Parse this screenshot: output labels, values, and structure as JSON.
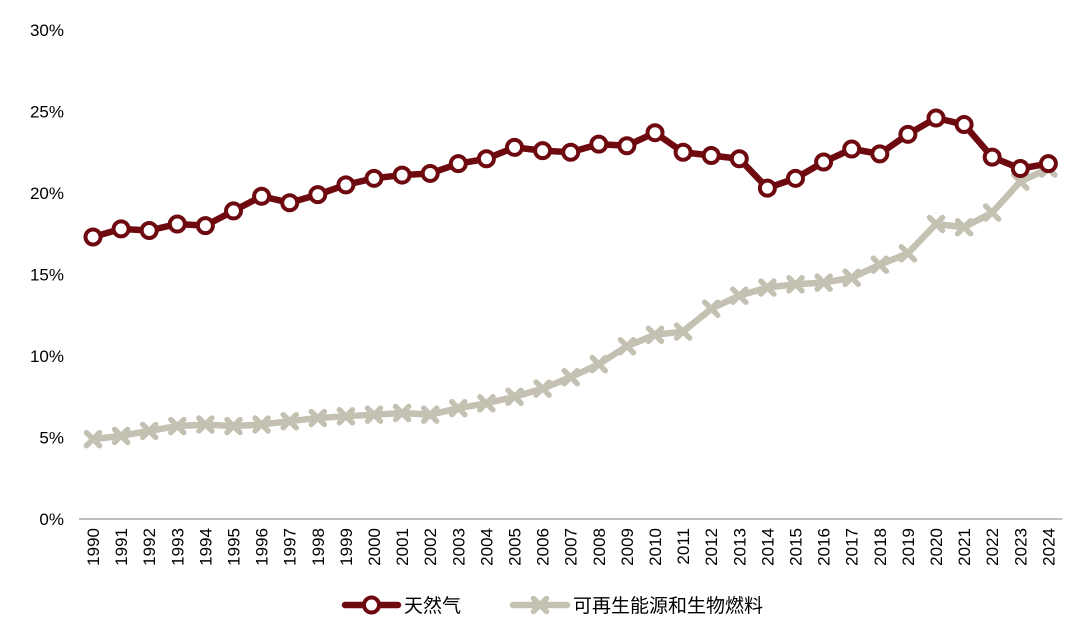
{
  "chart_data": {
    "type": "line",
    "title": "",
    "xlabel": "",
    "ylabel": "",
    "ylim": [
      0,
      30
    ],
    "yticks": [
      "0%",
      "5%",
      "10%",
      "15%",
      "20%",
      "25%",
      "30%"
    ],
    "grid": false,
    "legend_position": "bottom-center",
    "x": [
      "1990",
      "1991",
      "1992",
      "1993",
      "1994",
      "1995",
      "1996",
      "1997",
      "1998",
      "1999",
      "2000",
      "2001",
      "2002",
      "2003",
      "2004",
      "2005",
      "2006",
      "2007",
      "2008",
      "2009",
      "2010",
      "2011",
      "2012",
      "2013",
      "2014",
      "2015",
      "2016",
      "2017",
      "2018",
      "2019",
      "2020",
      "2021",
      "2022",
      "2023",
      "2024"
    ],
    "series": [
      {
        "name": "天然气",
        "color": "#6e0a0f",
        "marker": "circle",
        "values": [
          17.3,
          17.8,
          17.7,
          18.1,
          18.0,
          18.9,
          19.8,
          19.4,
          19.9,
          20.5,
          20.9,
          21.1,
          21.2,
          21.8,
          22.1,
          22.8,
          22.6,
          22.5,
          23.0,
          22.9,
          23.7,
          22.5,
          22.3,
          22.1,
          20.3,
          20.9,
          21.9,
          22.7,
          22.4,
          23.6,
          24.6,
          24.2,
          22.2,
          21.5,
          21.8
        ]
      },
      {
        "name": "可再生能源和生物燃料",
        "color": "#c4c1b3",
        "marker": "x",
        "values": [
          4.9,
          5.1,
          5.4,
          5.7,
          5.8,
          5.7,
          5.8,
          6.0,
          6.2,
          6.3,
          6.4,
          6.5,
          6.4,
          6.8,
          7.1,
          7.5,
          8.0,
          8.7,
          9.5,
          10.6,
          11.3,
          11.5,
          12.9,
          13.7,
          14.2,
          14.4,
          14.5,
          14.8,
          15.6,
          16.3,
          18.1,
          17.9,
          18.8,
          20.7,
          21.5
        ]
      }
    ]
  }
}
